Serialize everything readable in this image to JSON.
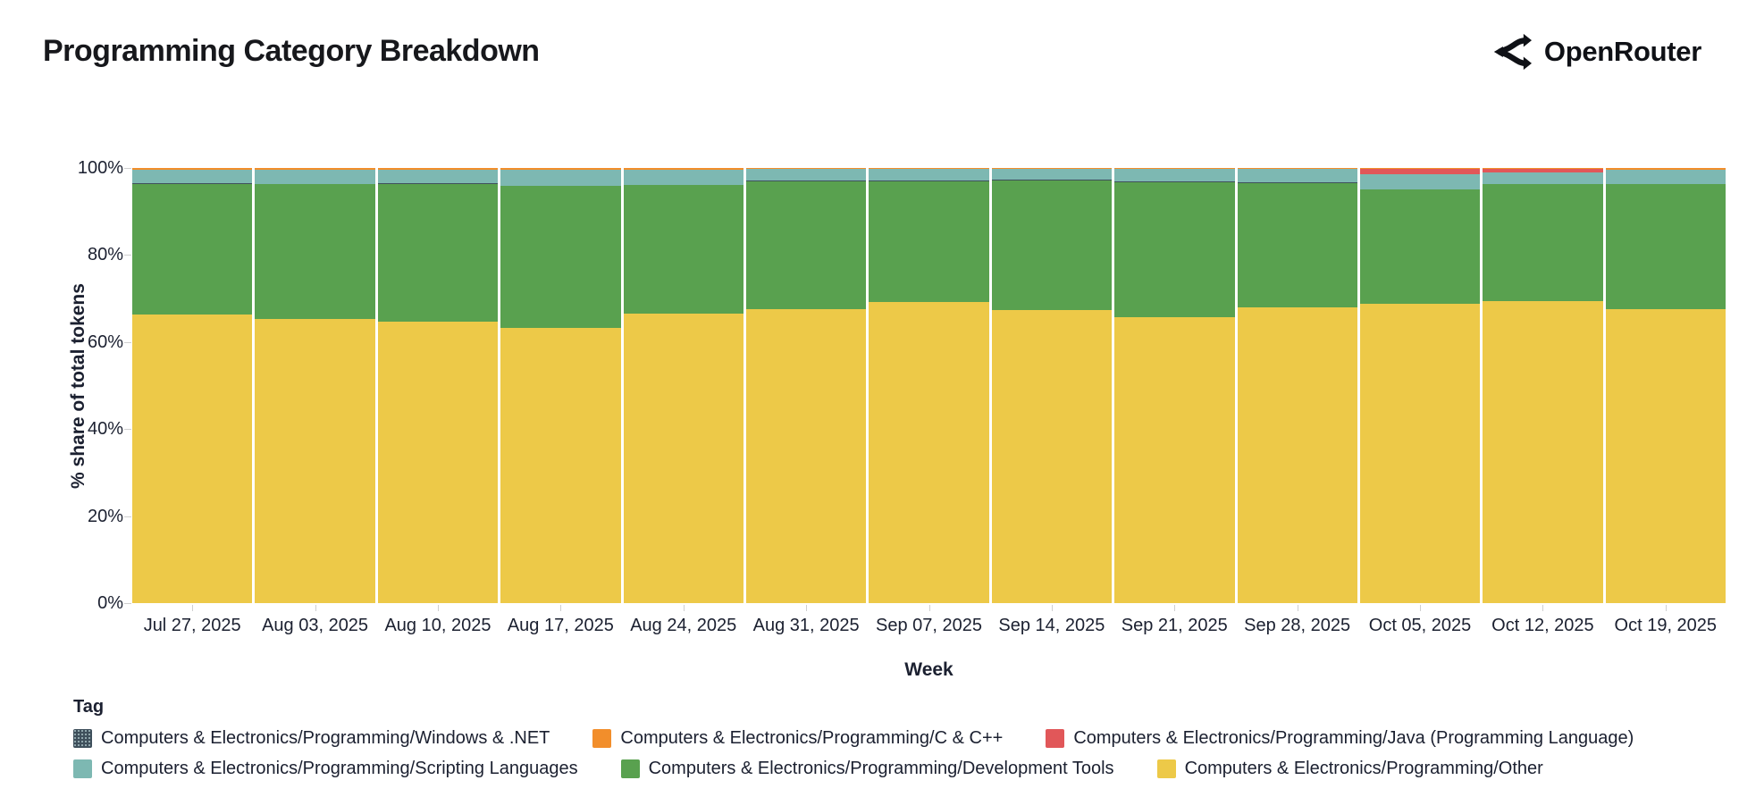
{
  "header": {
    "title": "Programming Category Breakdown",
    "brand": "OpenRouter"
  },
  "chart_data": {
    "type": "bar",
    "variant": "stacked-100-percent",
    "title": "Programming Category Breakdown",
    "xlabel": "Week",
    "ylabel": "% share of total tokens",
    "ylim": [
      0,
      100
    ],
    "yticks": [
      "0%",
      "20%",
      "40%",
      "60%",
      "80%",
      "100%"
    ],
    "ytick_values": [
      0,
      20,
      40,
      60,
      80,
      100
    ],
    "grid": false,
    "legend_title": "Tag",
    "legend_position": "bottom",
    "categories": [
      "Jul 27, 2025",
      "Aug 03, 2025",
      "Aug 10, 2025",
      "Aug 17, 2025",
      "Aug 24, 2025",
      "Aug 31, 2025",
      "Sep 07, 2025",
      "Sep 14, 2025",
      "Sep 21, 2025",
      "Sep 28, 2025",
      "Oct 05, 2025",
      "Oct 12, 2025",
      "Oct 19, 2025"
    ],
    "series": [
      {
        "name": "Computers & Electronics/Programming/Other",
        "color": "#EDC948",
        "values": [
          66.4,
          65.2,
          64.7,
          63.3,
          66.6,
          67.6,
          69.1,
          67.4,
          65.8,
          68.0,
          68.8,
          69.3,
          67.5
        ]
      },
      {
        "name": "Computers & Electronics/Programming/Development Tools",
        "color": "#59A14F",
        "values": [
          29.9,
          31.0,
          31.7,
          32.5,
          29.4,
          29.3,
          27.8,
          29.8,
          30.9,
          28.5,
          26.2,
          26.9,
          28.7
        ]
      },
      {
        "name": "Computers & Electronics/Programming/Windows & .NET",
        "color": "#3F505C",
        "pattern": "dots",
        "values": [
          0.15,
          0.15,
          0.15,
          0.15,
          0.15,
          0.15,
          0.15,
          0.15,
          0.15,
          0.15,
          0.15,
          0.15,
          0.15
        ]
      },
      {
        "name": "Computers & Electronics/Programming/Scripting Languages",
        "color": "#7DB8B2",
        "values": [
          3.2,
          3.3,
          3.1,
          3.7,
          3.5,
          2.7,
          2.7,
          2.4,
          2.9,
          3.1,
          3.5,
          2.7,
          3.2
        ]
      },
      {
        "name": "Computers & Electronics/Programming/Java (Programming Language)",
        "color": "#E15759",
        "values": [
          0,
          0,
          0,
          0,
          0,
          0,
          0,
          0,
          0,
          0,
          1.2,
          0.8,
          0
        ]
      },
      {
        "name": "Computers & Electronics/Programming/C & C++",
        "color": "#F28E2B",
        "values": [
          0.35,
          0.35,
          0.35,
          0.35,
          0.35,
          0.25,
          0.25,
          0.25,
          0.25,
          0.25,
          0.15,
          0.15,
          0.45
        ]
      }
    ],
    "stack_order_bottom_to_top": [
      0,
      1,
      2,
      3,
      4,
      5
    ],
    "legend_rows": [
      [
        2,
        5,
        4
      ],
      [
        3,
        1,
        0
      ]
    ]
  }
}
